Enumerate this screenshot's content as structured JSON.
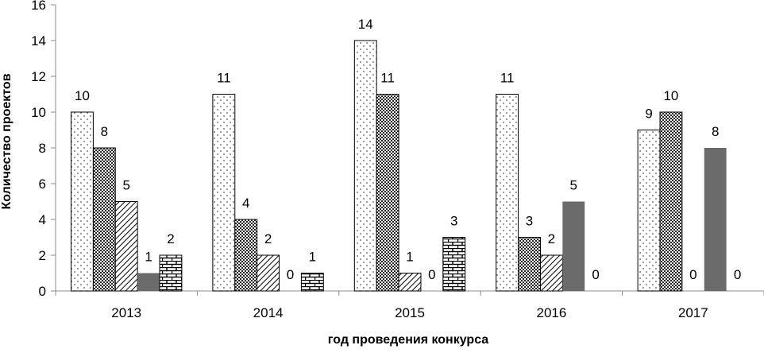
{
  "chart_data": {
    "type": "bar",
    "title": "",
    "xlabel": "год проведения конкурса",
    "ylabel": "Количество проектов",
    "ylim": [
      0,
      16
    ],
    "yticks": [
      0,
      2,
      4,
      6,
      8,
      10,
      12,
      14,
      16
    ],
    "grid": false,
    "legend": "none",
    "categories": [
      "2013",
      "2014",
      "2015",
      "2016",
      "2017"
    ],
    "series": [
      {
        "pattern": "dots",
        "color": "#ffffff",
        "values": [
          10,
          11,
          14,
          11,
          9
        ]
      },
      {
        "pattern": "crosshatch",
        "color": "#3a3a3a",
        "values": [
          8,
          4,
          11,
          3,
          10
        ]
      },
      {
        "pattern": "diagonal",
        "color": "#ffffff",
        "values": [
          5,
          2,
          1,
          2,
          0
        ]
      },
      {
        "pattern": "solid",
        "color": "#6b6b6b",
        "values": [
          1,
          0,
          0,
          5,
          8
        ]
      },
      {
        "pattern": "brick",
        "color": "#ffffff",
        "values": [
          2,
          1,
          3,
          0,
          0
        ]
      }
    ]
  }
}
